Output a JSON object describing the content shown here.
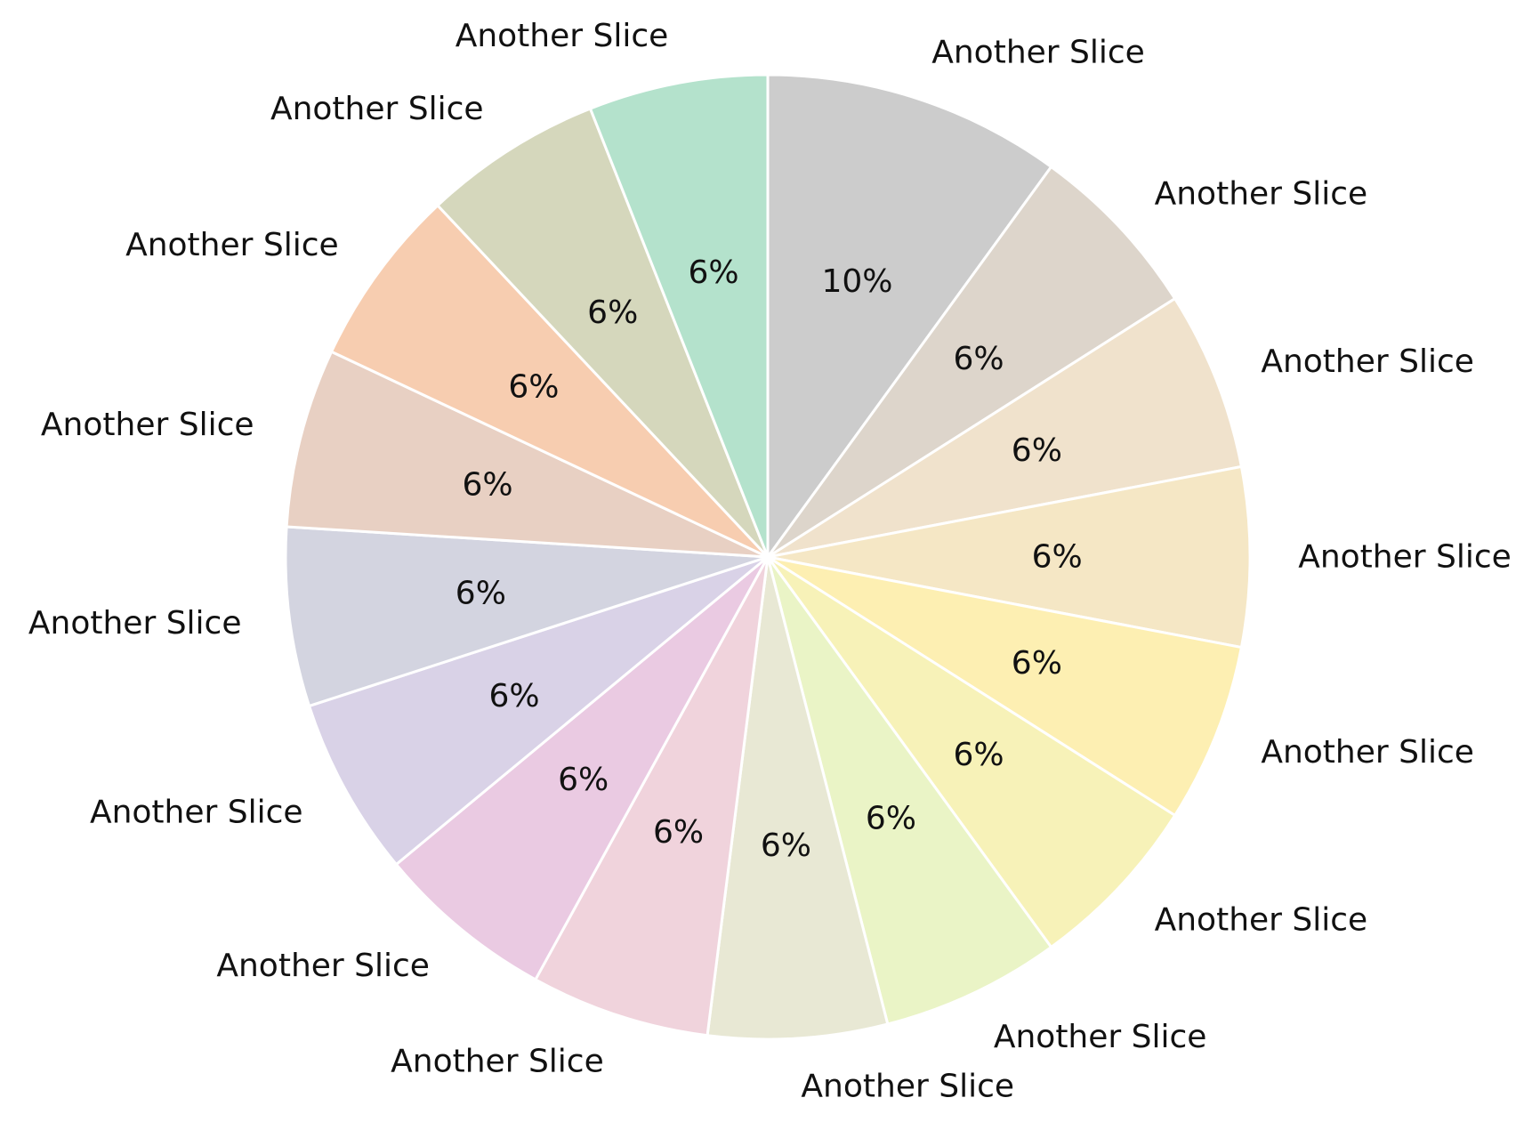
{
  "chart_data": {
    "type": "pie",
    "direction": "clockwise",
    "start": "12 o'clock",
    "edge_color": "#ffffff",
    "slices": [
      {
        "label": "Another Slice",
        "value": 10,
        "pct_label": "10%",
        "color": "#cccccc"
      },
      {
        "label": "Another Slice",
        "value": 6,
        "pct_label": "6%",
        "color": "#ddd5cb"
      },
      {
        "label": "Another Slice",
        "value": 6,
        "pct_label": "6%",
        "color": "#f0e2cc"
      },
      {
        "label": "Another Slice",
        "value": 6,
        "pct_label": "6%",
        "color": "#f5e7c5"
      },
      {
        "label": "Another Slice",
        "value": 6,
        "pct_label": "6%",
        "color": "#fdefb2"
      },
      {
        "label": "Another Slice",
        "value": 6,
        "pct_label": "6%",
        "color": "#f7f2b8"
      },
      {
        "label": "Another Slice",
        "value": 6,
        "pct_label": "6%",
        "color": "#eaf4c6"
      },
      {
        "label": "Another Slice",
        "value": 6,
        "pct_label": "6%",
        "color": "#e8e8d4"
      },
      {
        "label": "Another Slice",
        "value": 6,
        "pct_label": "6%",
        "color": "#f0d3dc"
      },
      {
        "label": "Another Slice",
        "value": 6,
        "pct_label": "6%",
        "color": "#eacae2"
      },
      {
        "label": "Another Slice",
        "value": 6,
        "pct_label": "6%",
        "color": "#d9d2e7"
      },
      {
        "label": "Another Slice",
        "value": 6,
        "pct_label": "6%",
        "color": "#d3d4e0"
      },
      {
        "label": "Another Slice",
        "value": 6,
        "pct_label": "6%",
        "color": "#e8d0c3"
      },
      {
        "label": "Another Slice",
        "value": 6,
        "pct_label": "6%",
        "color": "#f7cdb0"
      },
      {
        "label": "Another Slice",
        "value": 6,
        "pct_label": "6%",
        "color": "#d5d7bc"
      },
      {
        "label": "Another Slice",
        "value": 6,
        "pct_label": "6%",
        "color": "#b4e2cc"
      }
    ]
  }
}
